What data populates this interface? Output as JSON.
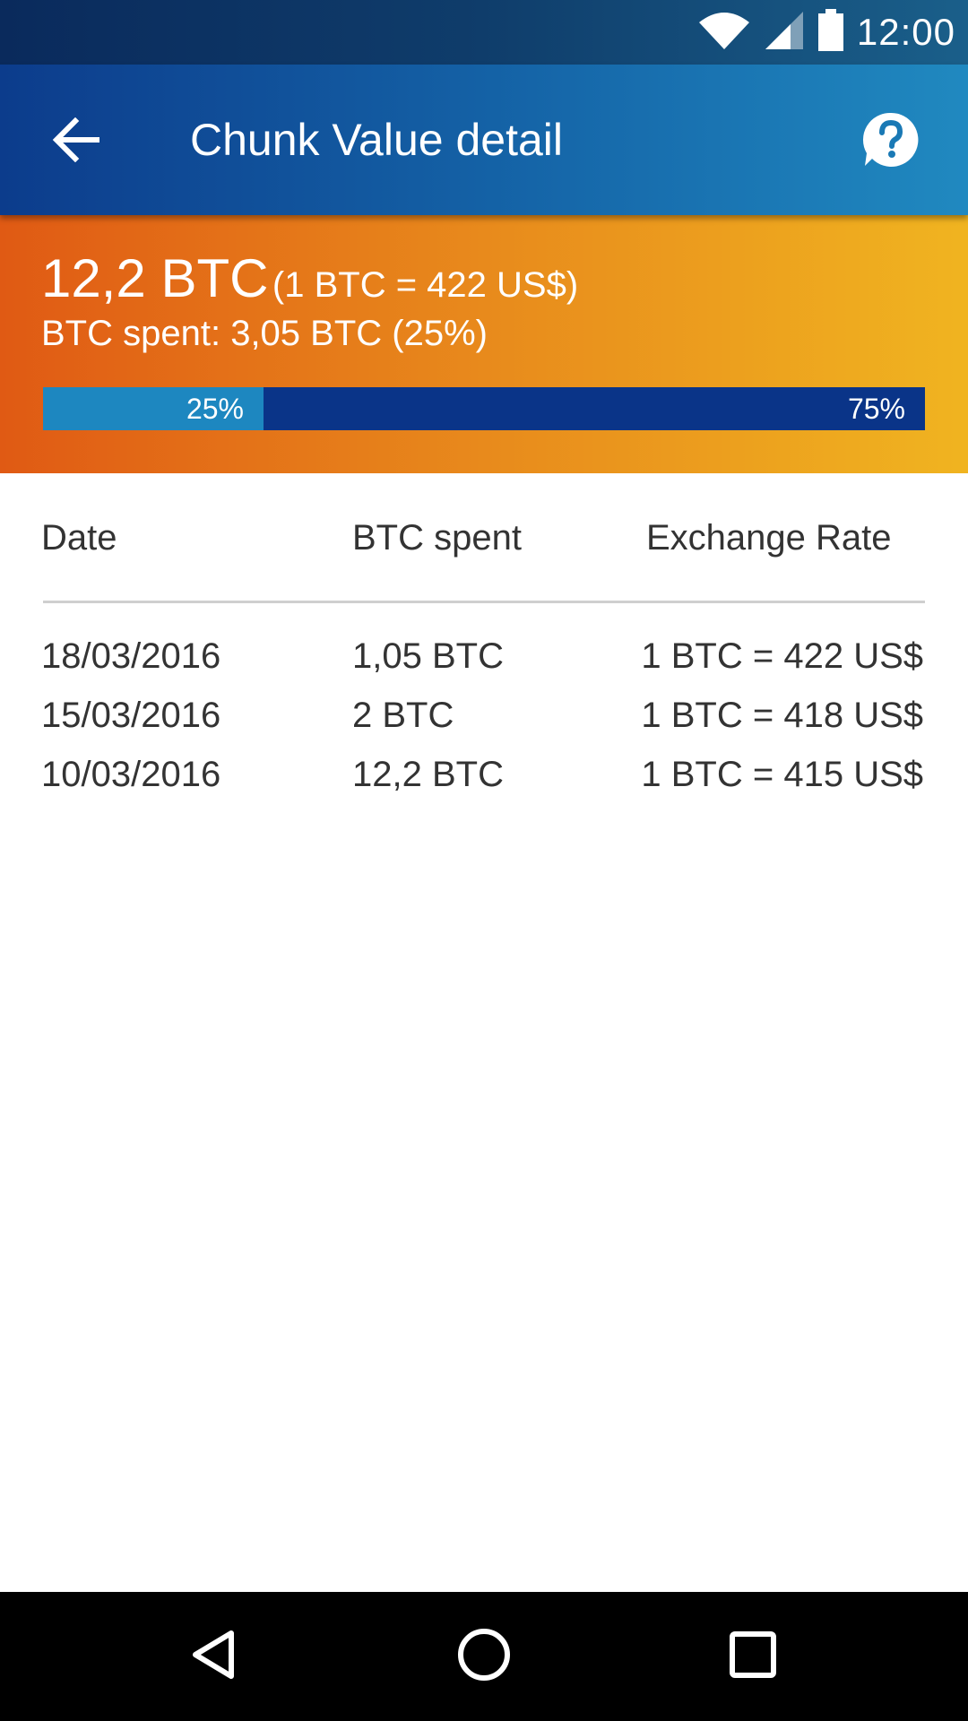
{
  "status_bar": {
    "time": "12:00",
    "icons": [
      "wifi-icon",
      "cell-signal-icon",
      "battery-icon"
    ]
  },
  "app_bar": {
    "title": "Chunk Value detail",
    "back_icon": "arrow-back-icon",
    "help_icon": "help-circle-icon"
  },
  "summary": {
    "amount": "12,2 BTC",
    "rate": "(1 BTC = 422 US$)",
    "spent_text": "BTC spent: 3,05 BTC (25%)",
    "progress": {
      "spent_fraction": 0.25,
      "spent_label": "25%",
      "remaining_label": "75%"
    }
  },
  "table": {
    "headers": [
      "Date",
      "BTC spent",
      "Exchange Rate"
    ],
    "rows": [
      {
        "date": "18/03/2016",
        "spent": "1,05 BTC",
        "rate": "1 BTC = 422 US$"
      },
      {
        "date": "15/03/2016",
        "spent": "2 BTC",
        "rate": "1 BTC = 418 US$"
      },
      {
        "date": "10/03/2016",
        "spent": "12,2 BTC",
        "rate": "1 BTC = 415 US$"
      }
    ]
  },
  "nav_bar": {
    "icons": [
      "nav-back-icon",
      "nav-home-icon",
      "nav-recents-icon"
    ]
  },
  "colors": {
    "app_bar_start": "#0c3c8c",
    "app_bar_end": "#2089c0",
    "summary_start": "#e05a14",
    "summary_end": "#f0b420",
    "progress_spent": "#1d87c0",
    "progress_remaining": "#0a3488"
  }
}
